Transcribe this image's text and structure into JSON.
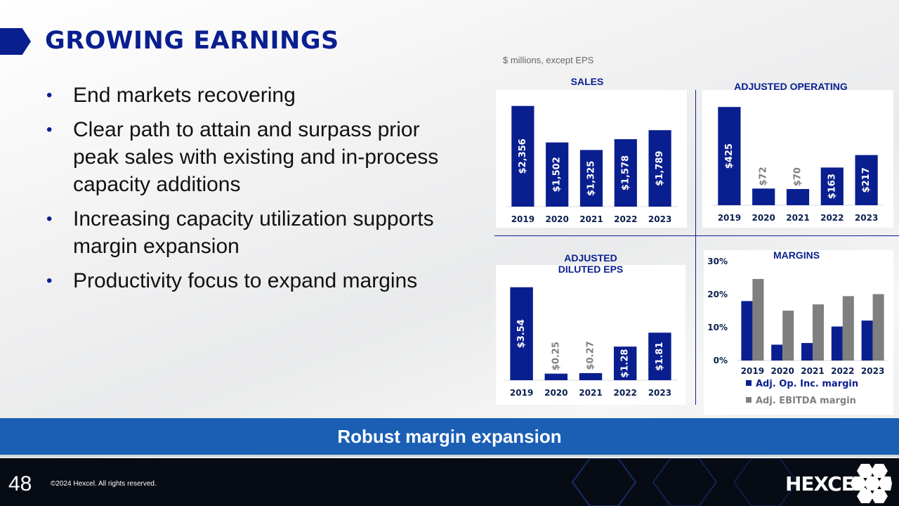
{
  "page_title": "GROWING EARNINGS",
  "bullets": [
    "End markets recovering",
    "Clear path to attain and surpass prior peak sales with existing and in-process capacity additions",
    "Increasing capacity utilization supports margin expansion",
    "Productivity focus to expand margins"
  ],
  "units_note": "$ millions, except EPS",
  "banner": "Robust margin expansion",
  "footer": {
    "page_number": "48",
    "copyright": "©2024 Hexcel. All rights reserved.",
    "logo": "HEXCEL",
    "logo_mark": "®"
  },
  "colors": {
    "navy": "#0a1f8f",
    "gray_bar": "#7f7f7f",
    "banner": "#1a5fb4"
  },
  "chart_data": [
    {
      "id": "sales",
      "type": "bar",
      "title": "SALES",
      "categories": [
        "2019",
        "2020",
        "2021",
        "2022",
        "2023"
      ],
      "values": [
        2356,
        1502,
        1325,
        1578,
        1789
      ],
      "labels": [
        "$2,356",
        "$1,502",
        "$1,325",
        "$1,578",
        "$1,789"
      ],
      "ylim": [
        0,
        2500
      ]
    },
    {
      "id": "adj_operating_income",
      "type": "bar",
      "title": "ADJUSTED OPERATING INCOME",
      "categories": [
        "2019",
        "2020",
        "2021",
        "2022",
        "2023"
      ],
      "values": [
        425,
        72,
        70,
        163,
        217
      ],
      "labels": [
        "$425",
        "$72",
        "$70",
        "$163",
        "$217"
      ],
      "ylim": [
        0,
        450
      ]
    },
    {
      "id": "adj_diluted_eps",
      "type": "bar",
      "title": "ADJUSTED DILUTED EPS",
      "categories": [
        "2019",
        "2020",
        "2021",
        "2022",
        "2023"
      ],
      "values": [
        3.54,
        0.25,
        0.27,
        1.28,
        1.81
      ],
      "labels": [
        "$3.54",
        "$0.25",
        "$0.27",
        "$1.28",
        "$1.81"
      ],
      "ylim": [
        0,
        3.8
      ]
    },
    {
      "id": "margins",
      "type": "bar",
      "title": "MARGINS",
      "categories": [
        "2019",
        "2020",
        "2021",
        "2022",
        "2023"
      ],
      "yticks": [
        "0%",
        "10%",
        "20%",
        "30%"
      ],
      "ylim": [
        0,
        30
      ],
      "series": [
        {
          "name": "Adj. Op. Inc. margin",
          "values": [
            18.0,
            4.8,
            5.3,
            10.3,
            12.1
          ],
          "color": "#0a1f8f"
        },
        {
          "name": "Adj. EBITDA margin",
          "values": [
            24.7,
            15.1,
            17.0,
            19.5,
            20.1
          ],
          "color": "#7f7f7f"
        }
      ],
      "legend": "bottom"
    }
  ]
}
